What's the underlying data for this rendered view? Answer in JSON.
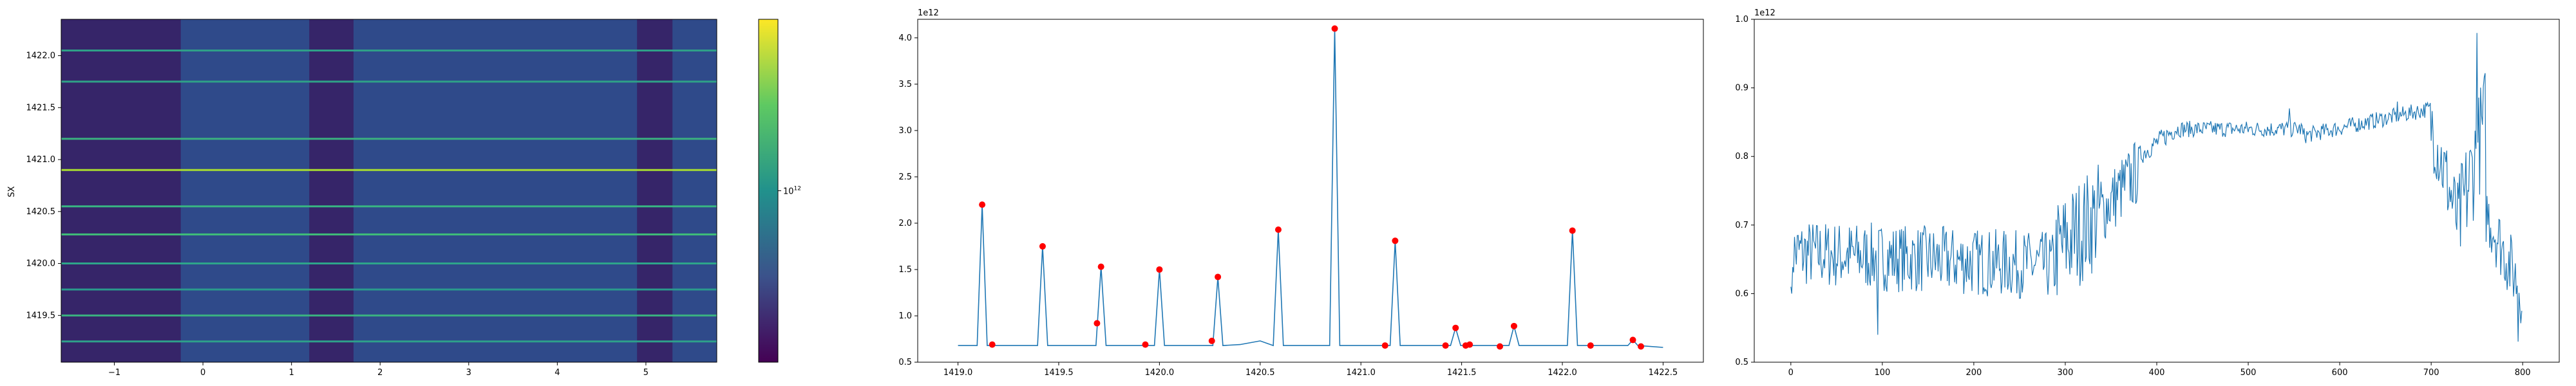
{
  "figure": {
    "background": "#ffffff"
  },
  "chart_data": [
    {
      "type": "heatmap",
      "title": "",
      "xlabel": "",
      "ylabel": "SX",
      "xlim": [
        -1.6,
        5.8
      ],
      "ylim": [
        1419.05,
        1422.35
      ],
      "x_ticks": [
        -1,
        0,
        1,
        2,
        3,
        4,
        5
      ],
      "y_ticks": [
        1419.5,
        1420.0,
        1420.5,
        1421.0,
        1421.5,
        1422.0
      ],
      "colormap": "viridis",
      "colorbar": {
        "scale": "log",
        "tick_labels": [
          "10^12"
        ],
        "tick_value": 1000000000000.0,
        "log_range": [
          11.2,
          12.8
        ]
      },
      "background_color": "#2f4a8a",
      "dark_band_color": "#3a1a5e",
      "dark_bands": [
        [
          -1.6,
          -0.25
        ],
        [
          1.2,
          1.7
        ],
        [
          4.9,
          5.3
        ]
      ],
      "horizontal_lines": [
        {
          "y": 1419.25,
          "color": "#2ea08a"
        },
        {
          "y": 1419.5,
          "color": "#3ab280"
        },
        {
          "y": 1419.75,
          "color": "#2a9a8c"
        },
        {
          "y": 1420.0,
          "color": "#2ea58a"
        },
        {
          "y": 1420.28,
          "color": "#3fbf78"
        },
        {
          "y": 1420.55,
          "color": "#38b582"
        },
        {
          "y": 1420.9,
          "color": "#a8dc30"
        },
        {
          "y": 1421.2,
          "color": "#3ab07f"
        },
        {
          "y": 1421.75,
          "color": "#2fa287"
        },
        {
          "y": 1422.05,
          "color": "#2fa088"
        }
      ]
    },
    {
      "type": "line",
      "title": "",
      "xlabel": "",
      "ylabel": "",
      "offset_label": "1e12",
      "xlim": [
        1418.8,
        1422.7
      ],
      "ylim": [
        0.5,
        4.2
      ],
      "x_ticks": [
        1419.0,
        1419.5,
        1420.0,
        1420.5,
        1421.0,
        1421.5,
        1422.0,
        1422.5
      ],
      "y_ticks": [
        0.5,
        1.0,
        1.5,
        2.0,
        2.5,
        3.0,
        3.5,
        4.0
      ],
      "line_color": "#1f77b4",
      "marker_color": "#ff0000",
      "baseline": 0.68,
      "peaks": [
        [
          1419.12,
          2.2
        ],
        [
          1419.42,
          1.75
        ],
        [
          1419.71,
          1.53
        ],
        [
          1420.0,
          1.5
        ],
        [
          1420.29,
          1.42
        ],
        [
          1420.59,
          1.93
        ],
        [
          1420.87,
          4.1
        ],
        [
          1421.17,
          1.81
        ],
        [
          1421.47,
          0.87
        ],
        [
          1421.76,
          0.89
        ],
        [
          1422.05,
          1.92
        ],
        [
          1422.35,
          0.74
        ]
      ],
      "markers": [
        [
          1419.12,
          2.2
        ],
        [
          1419.17,
          0.69
        ],
        [
          1419.42,
          1.75
        ],
        [
          1419.69,
          0.92
        ],
        [
          1419.71,
          1.53
        ],
        [
          1419.93,
          0.69
        ],
        [
          1420.0,
          1.5
        ],
        [
          1420.26,
          0.73
        ],
        [
          1420.29,
          1.42
        ],
        [
          1420.59,
          1.93
        ],
        [
          1420.87,
          4.1
        ],
        [
          1421.12,
          0.68
        ],
        [
          1421.17,
          1.81
        ],
        [
          1421.42,
          0.68
        ],
        [
          1421.47,
          0.87
        ],
        [
          1421.52,
          0.68
        ],
        [
          1421.54,
          0.69
        ],
        [
          1421.69,
          0.67
        ],
        [
          1421.76,
          0.89
        ],
        [
          1422.05,
          1.92
        ],
        [
          1422.14,
          0.68
        ],
        [
          1422.35,
          0.74
        ],
        [
          1422.39,
          0.67
        ]
      ],
      "x_end": 1422.5
    },
    {
      "type": "line",
      "title": "",
      "xlabel": "",
      "ylabel": "",
      "offset_label": "1e12",
      "xlim": [
        -40,
        840
      ],
      "ylim": [
        0.5,
        1.0
      ],
      "x_ticks": [
        0,
        100,
        200,
        300,
        400,
        500,
        600,
        700,
        800
      ],
      "y_ticks": [
        0.5,
        0.6,
        0.7,
        0.8,
        0.9,
        1.0
      ],
      "line_color": "#1f77b4",
      "n_points": 800,
      "segments": [
        {
          "from": 0,
          "to": 290,
          "start": 0.66,
          "end": 0.64,
          "noise": 0.05
        },
        {
          "from": 290,
          "to": 340,
          "start": 0.66,
          "end": 0.72,
          "noise": 0.08
        },
        {
          "from": 340,
          "to": 380,
          "start": 0.72,
          "end": 0.78,
          "noise": 0.05
        },
        {
          "from": 380,
          "to": 420,
          "start": 0.8,
          "end": 0.84,
          "noise": 0.015
        },
        {
          "from": 420,
          "to": 560,
          "start": 0.84,
          "end": 0.84,
          "noise": 0.012
        },
        {
          "from": 560,
          "to": 700,
          "start": 0.83,
          "end": 0.87,
          "noise": 0.012
        },
        {
          "from": 700,
          "to": 730,
          "start": 0.85,
          "end": 0.7,
          "noise": 0.06
        },
        {
          "from": 730,
          "to": 760,
          "start": 0.7,
          "end": 0.86,
          "noise": 0.08
        },
        {
          "from": 760,
          "to": 800,
          "start": 0.72,
          "end": 0.6,
          "noise": 0.05
        }
      ],
      "spikes": [
        [
          750,
          0.98
        ],
        [
          545,
          0.87
        ],
        [
          663,
          0.88
        ],
        [
          1,
          0.6
        ],
        [
          95,
          0.54
        ],
        [
          795,
          0.53
        ]
      ]
    }
  ]
}
